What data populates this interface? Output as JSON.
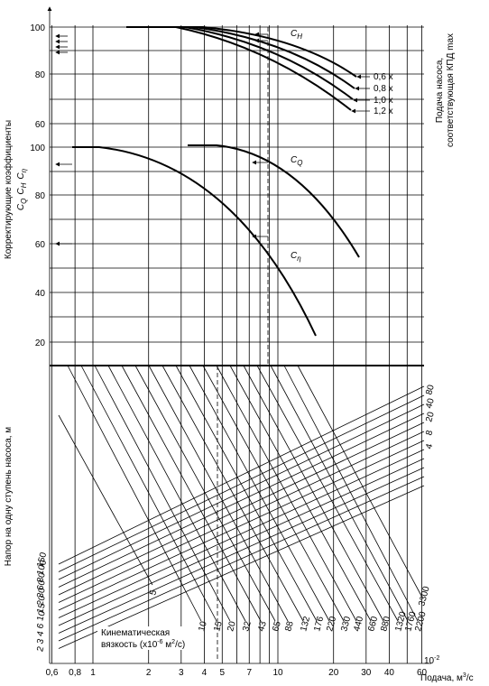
{
  "left_axis_title": "Корректирующие коэффициенты",
  "left_axis_symbols": [
    {
      "main": "C",
      "sub": "Q"
    },
    {
      "main": "C",
      "sub": "H"
    },
    {
      "main": "C",
      "sub": "η"
    }
  ],
  "right_axis_title": [
    "Подача насоса,",
    "соответствующая КПД max"
  ],
  "head_axis_title": "Напор на одну ступень насоса, м",
  "upper_ticks": [
    "100",
    "80",
    "60"
  ],
  "middle_ticks": [
    "100",
    "80",
    "60",
    "40",
    "20"
  ],
  "curve_labels": [
    {
      "main": "C",
      "sub": "H"
    },
    {
      "main": "C",
      "sub": "Q"
    },
    {
      "main": "C",
      "sub": "η"
    }
  ],
  "flow_labels": [
    "0,6 x",
    "0,8 x",
    "1,0 x",
    "1,2 x"
  ],
  "head_labels_left": [
    "150",
    "100",
    "80",
    "60",
    "30",
    "20",
    "15",
    "10",
    "6",
    "4",
    "3",
    "2"
  ],
  "head_labels_right": [
    "80",
    "40",
    "20",
    "8",
    "4"
  ],
  "viscosity_labels": [
    "5",
    "10",
    "15",
    "20",
    "32",
    "43",
    "65",
    "88",
    "132",
    "176",
    "220",
    "330",
    "440",
    "660",
    "880",
    "1320",
    "1760",
    "2200",
    "3300"
  ],
  "viscosity_caption": {
    "line1": "Кинематическая",
    "line2_start": "вязкость (x10",
    "exp": "-6",
    "line2_mid": " м",
    "sq": "2",
    "line2_end": "/с)"
  },
  "x_ticks": [
    "0,6",
    "0,8",
    "1",
    "2",
    "3",
    "4",
    "5",
    "7",
    "10",
    "20",
    "30",
    "40",
    "60"
  ],
  "x_multiplier": {
    "base": "10",
    "exp": "-2"
  },
  "x_axis_title": {
    "text": "Подача, м",
    "exp": "3",
    "end": "/с"
  }
}
